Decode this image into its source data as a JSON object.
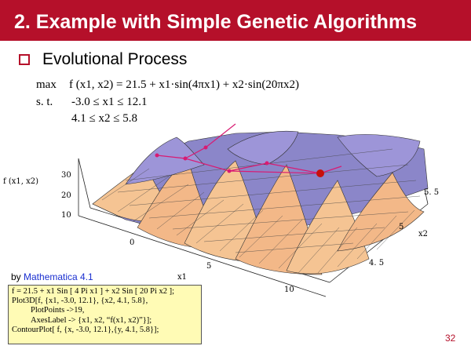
{
  "slide": {
    "title": "2. Example with Simple Genetic Algorithms",
    "bullet": "Evolutional Process",
    "page_number": "32"
  },
  "problem": {
    "max_label": "max",
    "objective": "f (x1, x2) = 21.5 + x1·sin(4πx1) + x2·sin(20πx2)",
    "st_label": "s. t.",
    "constraint_x1": "-3.0 ≤ x1 ≤ 12.1",
    "constraint_x2": "4.1 ≤ x2 ≤ 5.8"
  },
  "plot": {
    "z_axis_label": "f (x1, x2)",
    "x_axis_label": "x1",
    "y_axis_label": "x2",
    "z_ticks": [
      "30",
      "20",
      "10"
    ],
    "x_ticks": [
      "0",
      "5",
      "10"
    ],
    "y_ticks": [
      "5. 5",
      "5",
      "4. 5"
    ],
    "colors": {
      "peak_surface": "#f5c493",
      "valley_surface": "#8b86c9",
      "path_line": "#d81b73",
      "best_point": "#c8100a",
      "mesh": "#333333"
    }
  },
  "credit": {
    "prefix": "by ",
    "tool": "Mathematica 4.1"
  },
  "code": {
    "lines": [
      "f = 21.5 + x1 Sin [ 4 Pi x1 ] + x2 Sin [ 20 Pi x2 ];",
      "Plot3D[f, {x1, -3.0, 12.1}, {x2, 4.1, 5.8},",
      "PlotPoints ->19,",
      "AxesLabel -> {x1, x2, “f(x1, x2)”}];",
      "ContourPlot[ f, {x, -3.0, 12.1},{y, 4.1, 5.8}];"
    ]
  }
}
